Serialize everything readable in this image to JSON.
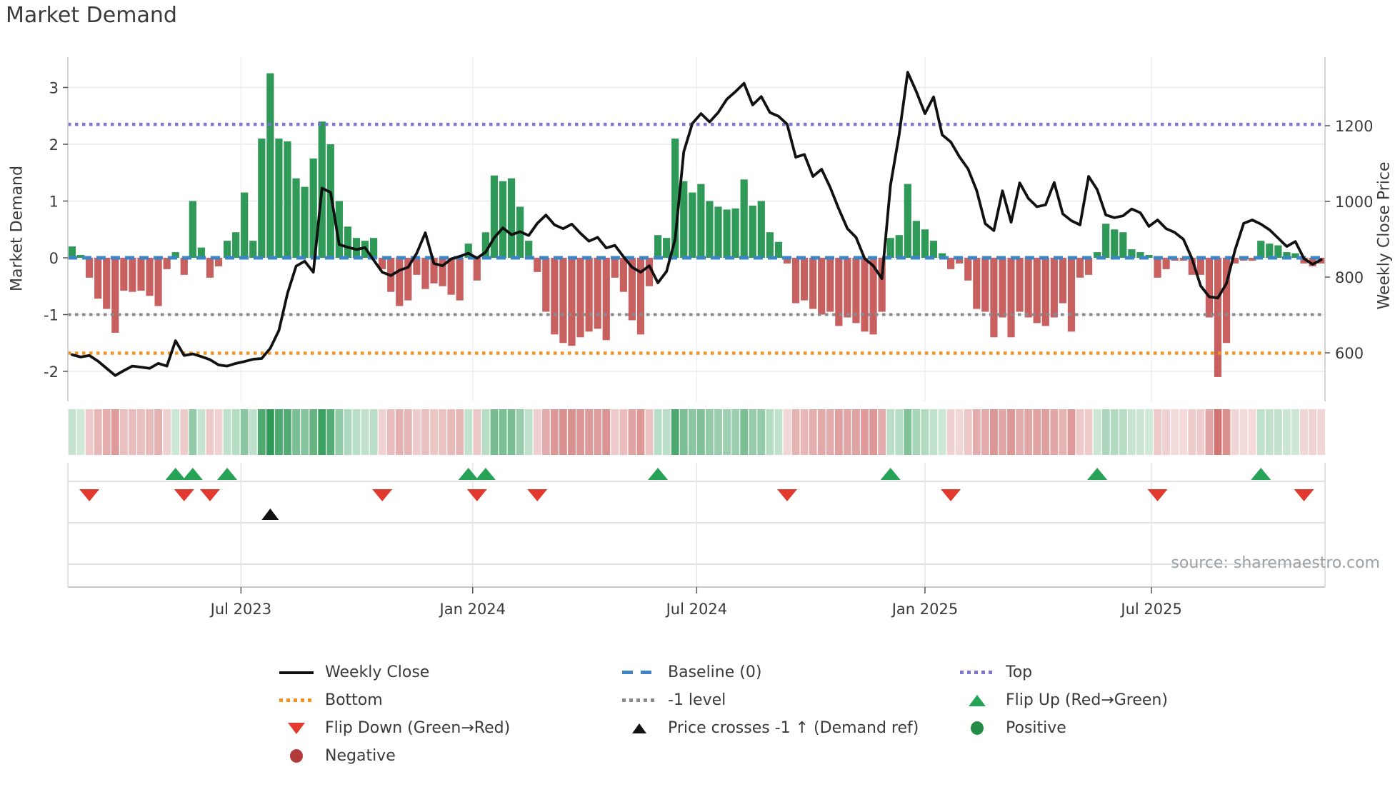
{
  "title": "Market Demand",
  "source": "source: sharemaestro.com",
  "axes": {
    "left_label": "Market Demand",
    "right_label": "Weekly Close Price",
    "left_ticks": [
      {
        "label": "3",
        "value": 3
      },
      {
        "label": "2",
        "value": 2
      },
      {
        "label": "1",
        "value": 1
      },
      {
        "label": "0",
        "value": 0
      },
      {
        "label": "-1",
        "value": -1
      },
      {
        "label": "-2",
        "value": -2
      }
    ],
    "right_ticks": [
      {
        "label": "1200",
        "value": 1200
      },
      {
        "label": "1000",
        "value": 1000
      },
      {
        "label": "800",
        "value": 800
      },
      {
        "label": "600",
        "value": 600
      }
    ],
    "x_ticks": [
      {
        "label": "Jul 2023",
        "week": 19.6
      },
      {
        "label": "Jan 2024",
        "week": 46.5
      },
      {
        "label": "Jul 2024",
        "week": 72.5
      },
      {
        "label": "Jan 2025",
        "week": 99.0
      },
      {
        "label": "Jul 2025",
        "week": 125.3
      }
    ]
  },
  "chart_data": {
    "type": "bar+line",
    "x_unit": "weeks",
    "left_ylim": [
      -2.53,
      3.53
    ],
    "right_ylim": [
      471,
      1381
    ],
    "grid": true,
    "levels": {
      "baseline": 0,
      "top": 2.35,
      "minus_one": -1,
      "bottom": -1.68
    },
    "demand": [
      0.2,
      0.05,
      -0.35,
      -0.72,
      -0.9,
      -1.32,
      -0.58,
      -0.6,
      -0.58,
      -0.67,
      -0.85,
      -0.2,
      0.1,
      -0.3,
      1.0,
      0.18,
      -0.35,
      -0.15,
      0.3,
      0.45,
      1.15,
      0.3,
      2.1,
      3.25,
      2.1,
      2.05,
      1.4,
      1.25,
      1.75,
      2.4,
      2.0,
      1.0,
      0.55,
      0.35,
      0.3,
      0.35,
      -0.2,
      -0.6,
      -0.85,
      -0.75,
      -0.3,
      -0.55,
      -0.45,
      -0.5,
      -0.65,
      -0.75,
      0.25,
      -0.4,
      0.45,
      1.45,
      1.35,
      1.4,
      0.9,
      0.3,
      -0.25,
      -0.95,
      -1.35,
      -1.5,
      -1.55,
      -1.4,
      -1.3,
      -1.25,
      -1.45,
      -0.35,
      -0.6,
      -1.1,
      -1.35,
      -0.5,
      0.4,
      0.35,
      2.1,
      1.35,
      1.15,
      1.3,
      1.0,
      0.9,
      0.85,
      0.87,
      1.38,
      0.92,
      1.0,
      0.45,
      0.28,
      -0.1,
      -0.8,
      -0.75,
      -0.9,
      -1.0,
      -0.95,
      -1.2,
      -1.05,
      -1.15,
      -1.3,
      -1.35,
      -0.95,
      0.35,
      0.4,
      1.3,
      0.65,
      0.5,
      0.3,
      0.08,
      -0.2,
      -0.1,
      -0.4,
      -0.9,
      -0.95,
      -1.4,
      -1.05,
      -1.4,
      -0.95,
      -1.05,
      -1.15,
      -1.2,
      -1.05,
      -0.8,
      -1.3,
      -0.35,
      -0.3,
      0.1,
      0.6,
      0.5,
      0.45,
      0.15,
      0.1,
      0.05,
      -0.35,
      -0.2,
      -0.05,
      -0.05,
      -0.3,
      -0.3,
      -1.05,
      -2.1,
      -1.5,
      -0.1,
      -0.05,
      -0.05,
      0.3,
      0.25,
      0.22,
      0.1,
      0.08,
      -0.1,
      -0.15,
      -0.1
    ],
    "weekly_close": [
      595,
      589,
      593,
      578,
      559,
      540,
      553,
      565,
      562,
      559,
      572,
      565,
      632,
      593,
      597,
      590,
      582,
      568,
      565,
      572,
      577,
      583,
      585,
      612,
      659,
      757,
      829,
      842,
      813,
      1035,
      1024,
      886,
      879,
      873,
      878,
      845,
      813,
      804,
      818,
      826,
      863,
      917,
      836,
      830,
      848,
      855,
      863,
      850,
      866,
      904,
      930,
      912,
      920,
      910,
      942,
      964,
      938,
      928,
      940,
      916,
      895,
      905,
      877,
      884,
      854,
      826,
      813,
      830,
      785,
      815,
      900,
      1131,
      1206,
      1232,
      1210,
      1235,
      1270,
      1290,
      1312,
      1255,
      1277,
      1235,
      1225,
      1204,
      1117,
      1124,
      1066,
      1085,
      1037,
      980,
      928,
      905,
      849,
      830,
      796,
      1043,
      1176,
      1341,
      1290,
      1232,
      1276,
      1176,
      1157,
      1118,
      1086,
      1029,
      941,
      923,
      1028,
      945,
      1049,
      1008,
      986,
      991,
      1050,
      967,
      949,
      938,
      1066,
      1031,
      964,
      957,
      962,
      980,
      970,
      934,
      951,
      928,
      918,
      900,
      849,
      777,
      748,
      745,
      783,
      872,
      942,
      951,
      940,
      925,
      903,
      881,
      894,
      849,
      834,
      846
    ],
    "flip_up_weeks": [
      12,
      14,
      18,
      46,
      48,
      68,
      95,
      119,
      138
    ],
    "flip_down_weeks": [
      2,
      13,
      16,
      36,
      47,
      54,
      83,
      102,
      126,
      143
    ],
    "price_cross_weeks": [
      23
    ]
  },
  "legend": {
    "columns": [
      {
        "items": [
          {
            "label": "Weekly Close",
            "swatch": "line-black"
          },
          {
            "label": "Bottom",
            "swatch": "dotted-orange"
          },
          {
            "label": "Flip Down (Green→Red)",
            "swatch": "triangle-down-red"
          },
          {
            "label": "Negative",
            "swatch": "circle-red"
          }
        ]
      },
      {
        "items": [
          {
            "label": "Baseline (0)",
            "swatch": "dashed-blue"
          },
          {
            "label": "-1 level",
            "swatch": "dotted-gray"
          },
          {
            "label": "Price crosses -1 ↑ (Demand ref)",
            "swatch": "triangle-up-black"
          }
        ]
      },
      {
        "items": [
          {
            "label": "Top",
            "swatch": "dotted-purple"
          },
          {
            "label": "Flip Up (Red→Green)",
            "swatch": "triangle-up-green"
          },
          {
            "label": "Positive",
            "swatch": "circle-green"
          }
        ]
      }
    ]
  },
  "colors": {
    "bar_positive": "#2f9a57",
    "bar_negative": "#c96060",
    "price_line": "#111111",
    "baseline": "#3d85c4",
    "top_level": "#7b76d0",
    "minus_one_level": "#8a8a8f",
    "bottom_level": "#f5941d",
    "flip_up": "#27a357",
    "flip_down": "#e23a2e",
    "cross_marker": "#111111",
    "positive_dot": "#238b45",
    "negative_dot": "#b03a3c"
  }
}
